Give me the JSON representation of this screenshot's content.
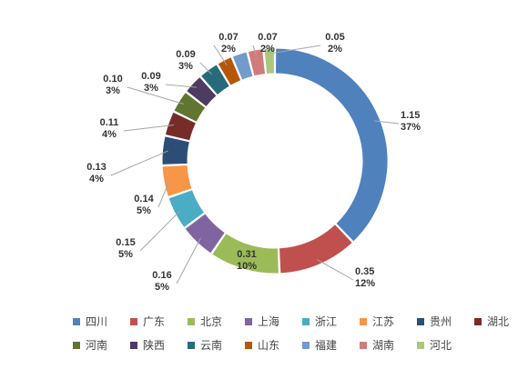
{
  "chart_data": {
    "type": "pie",
    "variant": "donut",
    "title": "",
    "slices": [
      {
        "name": "四川",
        "value": 1.15,
        "percent": "37%",
        "color": "#4f81bd"
      },
      {
        "name": "广东",
        "value": 0.35,
        "percent": "12%",
        "color": "#c0504d"
      },
      {
        "name": "北京",
        "value": 0.31,
        "percent": "10%",
        "color": "#9bbb59"
      },
      {
        "name": "上海",
        "value": 0.16,
        "percent": "5%",
        "color": "#8064a2"
      },
      {
        "name": "浙江",
        "value": 0.15,
        "percent": "5%",
        "color": "#4bacc6"
      },
      {
        "name": "江苏",
        "value": 0.14,
        "percent": "5%",
        "color": "#f79646"
      },
      {
        "name": "贵州",
        "value": 0.13,
        "percent": "4%",
        "color": "#2c4d75"
      },
      {
        "name": "湖北",
        "value": 0.11,
        "percent": "4%",
        "color": "#772c2a"
      },
      {
        "name": "河南",
        "value": 0.1,
        "percent": "3%",
        "color": "#5f7530"
      },
      {
        "name": "陕西",
        "value": 0.09,
        "percent": "3%",
        "color": "#4d3b62"
      },
      {
        "name": "云南",
        "value": 0.09,
        "percent": "3%",
        "color": "#276a7c"
      },
      {
        "name": "山东",
        "value": 0.07,
        "percent": "2%",
        "color": "#b65708"
      },
      {
        "name": "福建",
        "value": 0.07,
        "percent": "2%",
        "color": "#729aca"
      },
      {
        "name": "湖南",
        "value": 0.07,
        "percent": "2%",
        "color": "#d07c7a"
      },
      {
        "name": "河北",
        "value": 0.05,
        "percent": "2%",
        "color": "#a9c77e"
      }
    ],
    "legend_position": "bottom",
    "grid": false
  }
}
